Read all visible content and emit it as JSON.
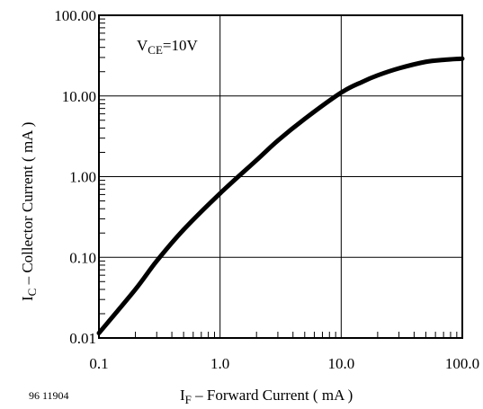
{
  "chart_data": {
    "type": "line",
    "x_scale": "log",
    "y_scale": "log",
    "xlim": [
      0.1,
      100.0
    ],
    "ylim": [
      0.01,
      100.0
    ],
    "grid": true,
    "x_ticks": [
      "0.1",
      "1.0",
      "10.0",
      "100.0"
    ],
    "y_ticks": [
      "0.01",
      "0.10",
      "1.00",
      "10.00",
      "100.00"
    ],
    "xlabel": {
      "main": "I",
      "sub": "F",
      "rest": " – Forward Current ( mA )"
    },
    "ylabel": {
      "main": "I",
      "sub": "C",
      "rest": " – Collector Current ( mA )"
    },
    "annotation": {
      "main": "V",
      "sub": "CE",
      "rest": "=10V"
    },
    "figure_id": "96 11904",
    "series": [
      {
        "x": [
          0.1,
          0.2,
          0.3,
          0.5,
          1.0,
          2.0,
          3.0,
          5.0,
          10.0,
          15.0,
          20.0,
          30.0,
          50.0,
          70.0,
          100.0
        ],
        "y": [
          0.0115,
          0.04,
          0.09,
          0.22,
          0.62,
          1.6,
          2.8,
          5.2,
          11.0,
          15.0,
          18.0,
          22.0,
          26.5,
          28.0,
          29.0
        ]
      }
    ]
  }
}
